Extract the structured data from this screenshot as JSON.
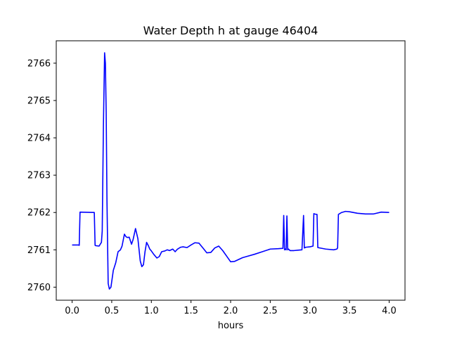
{
  "chart_data": {
    "type": "line",
    "title": "Water Depth h at gauge 46404",
    "xlabel": "hours",
    "ylabel": "",
    "xlim": [
      -0.2,
      4.2
    ],
    "ylim": [
      2759.65,
      2766.6
    ],
    "xticks": [
      0.0,
      0.5,
      1.0,
      1.5,
      2.0,
      2.5,
      3.0,
      3.5,
      4.0
    ],
    "xtick_labels": [
      "0.0",
      "0.5",
      "1.0",
      "1.5",
      "2.0",
      "2.5",
      "3.0",
      "3.5",
      "4.0"
    ],
    "yticks": [
      2760,
      2761,
      2762,
      2763,
      2764,
      2765,
      2766
    ],
    "ytick_labels": [
      "2760",
      "2761",
      "2762",
      "2763",
      "2764",
      "2765",
      "2766"
    ],
    "grid": false,
    "series": [
      {
        "color": "#0000ff",
        "x": [
          0.0,
          0.08,
          0.09,
          0.1,
          0.28,
          0.29,
          0.3,
          0.34,
          0.37,
          0.38,
          0.395,
          0.41,
          0.42,
          0.43,
          0.44,
          0.455,
          0.47,
          0.49,
          0.5,
          0.52,
          0.55,
          0.58,
          0.61,
          0.63,
          0.66,
          0.68,
          0.7,
          0.72,
          0.75,
          0.77,
          0.8,
          0.83,
          0.86,
          0.88,
          0.9,
          0.92,
          0.94,
          0.96,
          0.98,
          1.0,
          1.03,
          1.07,
          1.1,
          1.13,
          1.17,
          1.2,
          1.23,
          1.27,
          1.3,
          1.33,
          1.37,
          1.4,
          1.45,
          1.5,
          1.55,
          1.6,
          1.65,
          1.7,
          1.75,
          1.8,
          1.85,
          1.9,
          1.95,
          2.0,
          2.05,
          2.1,
          2.15,
          2.2,
          2.3,
          2.4,
          2.5,
          2.6,
          2.66,
          2.67,
          2.68,
          2.69,
          2.7,
          2.71,
          2.72,
          2.73,
          2.74,
          2.75,
          2.8,
          2.85,
          2.9,
          2.92,
          2.93,
          2.94,
          2.95,
          3.0,
          3.04,
          3.05,
          3.06,
          3.08,
          3.09,
          3.1,
          3.2,
          3.3,
          3.34,
          3.35,
          3.36,
          3.4,
          3.45,
          3.5,
          3.6,
          3.7,
          3.8,
          3.9,
          4.0
        ],
        "values": [
          2761.13,
          2761.13,
          2761.12,
          2762.01,
          2762.0,
          2761.12,
          2761.11,
          2761.1,
          2761.2,
          2761.5,
          2764.3,
          2766.28,
          2766.0,
          2764.7,
          2762.3,
          2760.1,
          2759.95,
          2760.0,
          2760.15,
          2760.45,
          2760.65,
          2760.95,
          2761.0,
          2761.1,
          2761.42,
          2761.35,
          2761.33,
          2761.34,
          2761.15,
          2761.28,
          2761.57,
          2761.3,
          2760.7,
          2760.55,
          2760.6,
          2760.95,
          2761.2,
          2761.12,
          2761.02,
          2760.97,
          2760.88,
          2760.78,
          2760.82,
          2760.95,
          2760.97,
          2761.0,
          2760.98,
          2761.02,
          2760.95,
          2761.02,
          2761.07,
          2761.08,
          2761.06,
          2761.13,
          2761.19,
          2761.18,
          2761.05,
          2760.92,
          2760.93,
          2761.05,
          2761.1,
          2760.98,
          2760.83,
          2760.68,
          2760.69,
          2760.74,
          2760.79,
          2760.82,
          2760.88,
          2760.95,
          2761.02,
          2761.03,
          2761.04,
          2761.92,
          2761.0,
          2761.02,
          2761.0,
          2761.91,
          2761.0,
          2761.02,
          2761.0,
          2760.98,
          2760.98,
          2760.99,
          2761.0,
          2761.92,
          2761.05,
          2761.06,
          2761.07,
          2761.08,
          2761.1,
          2761.97,
          2761.96,
          2761.95,
          2761.95,
          2761.06,
          2761.02,
          2761.0,
          2761.02,
          2761.05,
          2761.95,
          2762.0,
          2762.03,
          2762.02,
          2761.98,
          2761.96,
          2761.96,
          2762.01,
          2762.0
        ]
      }
    ]
  }
}
